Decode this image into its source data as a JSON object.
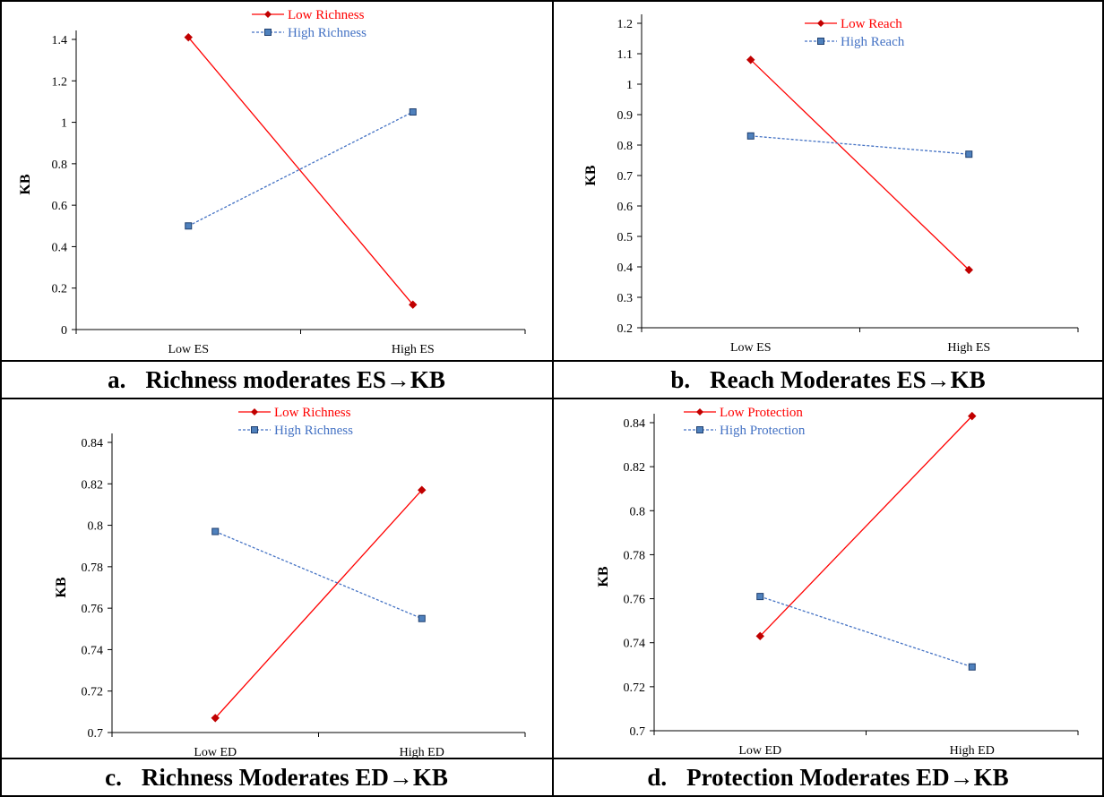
{
  "panels": [
    {
      "caption_letter": "a.",
      "caption_text": "Richness moderates ES→KB",
      "chart_data": {
        "type": "line",
        "categories": [
          "Low ES",
          "High ES"
        ],
        "ylabel": "KB",
        "xlabel": "",
        "ylim": [
          0,
          1.4
        ],
        "yticks": [
          "0",
          "0.2",
          "0.4",
          "0.6",
          "0.8",
          "1",
          "1.2",
          "1.4"
        ],
        "legend_position": "top-center",
        "series": [
          {
            "name": "Low Richness",
            "values": [
              1.41,
              0.12
            ],
            "color": "#ff0000",
            "marker": "diamond",
            "dashed": false
          },
          {
            "name": "High Richness",
            "values": [
              0.5,
              1.05
            ],
            "color": "#4472c4",
            "marker": "square",
            "dashed": true
          }
        ]
      }
    },
    {
      "caption_letter": "b.",
      "caption_text": "Reach Moderates ES→KB",
      "chart_data": {
        "type": "line",
        "categories": [
          "Low ES",
          "High ES"
        ],
        "ylabel": "KB",
        "xlabel": "",
        "ylim": [
          0.2,
          1.2
        ],
        "yticks": [
          "0.2",
          "0.3",
          "0.4",
          "0.5",
          "0.6",
          "0.7",
          "0.8",
          "0.9",
          "1",
          "1.1",
          "1.2"
        ],
        "legend_position": "top-center",
        "series": [
          {
            "name": "Low Reach",
            "values": [
              1.08,
              0.39
            ],
            "color": "#ff0000",
            "marker": "diamond",
            "dashed": false
          },
          {
            "name": "High Reach",
            "values": [
              0.83,
              0.77
            ],
            "color": "#4472c4",
            "marker": "square",
            "dashed": true
          }
        ]
      }
    },
    {
      "caption_letter": "c.",
      "caption_text": "Richness Moderates ED→KB",
      "chart_data": {
        "type": "line",
        "categories": [
          "Low ED",
          "High ED"
        ],
        "ylabel": "KB",
        "xlabel": "",
        "ylim": [
          0.7,
          0.84
        ],
        "yticks": [
          "0.7",
          "0.72",
          "0.74",
          "0.76",
          "0.78",
          "0.8",
          "0.82",
          "0.84"
        ],
        "legend_position": "top-center",
        "series": [
          {
            "name": "Low Richness",
            "values": [
              0.707,
              0.817
            ],
            "color": "#ff0000",
            "marker": "diamond",
            "dashed": false
          },
          {
            "name": "High Richness",
            "values": [
              0.797,
              0.755
            ],
            "color": "#4472c4",
            "marker": "square",
            "dashed": true
          }
        ]
      }
    },
    {
      "caption_letter": "d.",
      "caption_text": "Protection Moderates ED→KB",
      "chart_data": {
        "type": "line",
        "categories": [
          "Low ED",
          "High ED"
        ],
        "ylabel": "KB",
        "xlabel": "",
        "ylim": [
          0.7,
          0.84
        ],
        "yticks": [
          "0.7",
          "0.72",
          "0.74",
          "0.76",
          "0.78",
          "0.8",
          "0.82",
          "0.84"
        ],
        "legend_position": "top-left",
        "series": [
          {
            "name": "Low Protection",
            "values": [
              0.743,
              0.843
            ],
            "color": "#ff0000",
            "marker": "diamond",
            "dashed": false
          },
          {
            "name": "High Protection",
            "values": [
              0.761,
              0.729
            ],
            "color": "#4472c4",
            "marker": "square",
            "dashed": true
          }
        ]
      }
    }
  ]
}
